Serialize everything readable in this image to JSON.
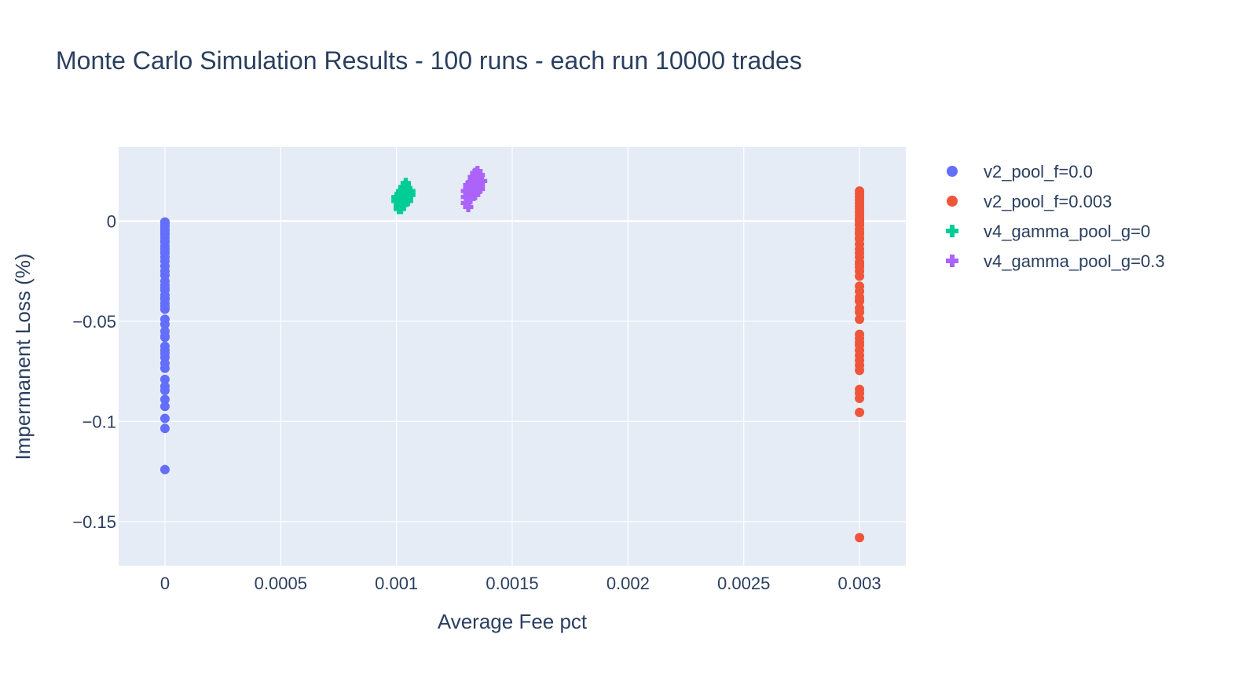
{
  "chart_data": {
    "type": "scatter",
    "title": "Monte Carlo Simulation Results - 100 runs - each run 10000 trades",
    "xlabel": "Average Fee pct",
    "ylabel": "Impermanent Loss (%)",
    "xlim": [
      -0.0002,
      0.0032
    ],
    "ylim": [
      -0.172,
      0.037
    ],
    "x_ticks": [
      0,
      0.0005,
      0.001,
      0.0015,
      0.002,
      0.0025,
      0.003
    ],
    "x_tick_labels": [
      "0",
      "0.0005",
      "0.001",
      "0.0015",
      "0.002",
      "0.0025",
      "0.003"
    ],
    "y_ticks": [
      0,
      -0.05,
      -0.1,
      -0.15
    ],
    "y_tick_labels": [
      "0",
      "−0.05",
      "−0.1",
      "−0.15"
    ],
    "grid": true,
    "legend_position": "right",
    "colors": {
      "plot_bg": "#e5ecf6",
      "grid": "#ffffff",
      "text": "#2a3f5f"
    },
    "series": [
      {
        "name": "v2_pool_f=0.0",
        "marker": "circle",
        "color": "#636efa",
        "x": [
          0,
          0,
          0,
          0,
          0,
          0,
          0,
          0,
          0,
          0,
          0,
          0,
          0,
          0,
          0,
          0,
          0,
          0,
          0,
          0,
          0,
          0,
          0,
          0,
          0,
          0,
          0,
          0,
          0,
          0,
          0,
          0,
          0,
          0,
          0,
          0,
          0,
          0,
          0,
          0,
          0,
          0,
          0,
          0,
          0,
          0,
          0,
          0,
          0,
          0
        ],
        "y": [
          -0.0005,
          -0.0015,
          -0.002,
          -0.003,
          -0.0045,
          -0.006,
          -0.007,
          -0.0085,
          -0.01,
          -0.0125,
          -0.014,
          -0.016,
          -0.018,
          -0.02,
          -0.025,
          -0.027,
          -0.03,
          -0.032,
          -0.0345,
          -0.037,
          -0.039,
          -0.041,
          -0.044,
          -0.049,
          -0.0515,
          -0.055,
          -0.058,
          -0.0645,
          -0.066,
          -0.068,
          -0.071,
          -0.0735,
          -0.079,
          -0.0825,
          -0.0845,
          -0.089,
          -0.0925,
          -0.0985,
          -0.1035,
          -0.124,
          -0.0105,
          -0.0225,
          -0.0335,
          -0.0425,
          -0.0575,
          -0.0625,
          -0.0005,
          -0.0045,
          -0.0155,
          -0.0385
        ]
      },
      {
        "name": "v2_pool_f=0.003",
        "marker": "circle",
        "color": "#ef553b",
        "x": [
          0.003,
          0.003,
          0.003,
          0.003,
          0.003,
          0.003,
          0.003,
          0.003,
          0.003,
          0.003,
          0.003,
          0.003,
          0.003,
          0.003,
          0.003,
          0.003,
          0.003,
          0.003,
          0.003,
          0.003,
          0.003,
          0.003,
          0.003,
          0.003,
          0.003,
          0.003,
          0.003,
          0.003,
          0.003,
          0.003,
          0.003,
          0.003,
          0.003,
          0.003,
          0.003,
          0.003,
          0.003,
          0.003,
          0.003,
          0.003,
          0.003,
          0.003,
          0.003,
          0.003,
          0.003,
          0.003,
          0.003,
          0.003,
          0.003,
          0.003
        ],
        "y": [
          0.015,
          0.0135,
          0.012,
          0.0105,
          0.009,
          0.0075,
          0.006,
          0.0045,
          0.003,
          0.0015,
          0,
          -0.002,
          -0.004,
          -0.0065,
          -0.009,
          -0.0115,
          -0.014,
          -0.016,
          -0.018,
          -0.0205,
          -0.023,
          -0.025,
          -0.0325,
          -0.035,
          -0.038,
          -0.04,
          -0.0435,
          -0.0455,
          -0.049,
          -0.0565,
          -0.0585,
          -0.062,
          -0.0645,
          -0.067,
          -0.0695,
          -0.072,
          -0.0745,
          -0.084,
          -0.086,
          -0.0885,
          -0.0955,
          -0.158,
          -0.0015,
          -0.0275,
          -0.0395,
          -0.0605,
          -0.0055,
          -0.0215,
          -0.0085,
          0.0005
        ]
      },
      {
        "name": "v4_gamma_pool_g=0",
        "marker": "cross",
        "color": "#00cc96",
        "x": [
          0.00101,
          0.00102,
          0.00103,
          0.00104,
          0.00105,
          0.00106,
          0.001,
          0.00101,
          0.00102,
          0.00103,
          0.00104,
          0.00105,
          0.00101,
          0.00102,
          0.00103,
          0.00104,
          0.00101,
          0.00102,
          0.00103,
          0.00105,
          0.00106,
          0.00104,
          0.00103,
          0.00102,
          0.001
        ],
        "y": [
          0.012,
          0.014,
          0.016,
          0.018,
          0.015,
          0.013,
          0.01,
          0.009,
          0.011,
          0.013,
          0.015,
          0.012,
          0.007,
          0.008,
          0.01,
          0.011,
          0.006,
          0.006,
          0.008,
          0.01,
          0.015,
          0.019,
          0.017,
          0.015,
          0.012
        ]
      },
      {
        "name": "v4_gamma_pool_g=0.3",
        "marker": "cross",
        "color": "#ab63fa",
        "x": [
          0.00131,
          0.00132,
          0.00133,
          0.00134,
          0.00135,
          0.00136,
          0.00137,
          0.0013,
          0.00131,
          0.00132,
          0.00133,
          0.00134,
          0.00135,
          0.00136,
          0.0013,
          0.00131,
          0.00132,
          0.00133,
          0.00134,
          0.0013,
          0.00131,
          0.00132,
          0.00134,
          0.00135,
          0.00136,
          0.00133,
          0.00134,
          0.00135
        ],
        "y": [
          0.018,
          0.019,
          0.02,
          0.021,
          0.022,
          0.023,
          0.02,
          0.015,
          0.016,
          0.017,
          0.018,
          0.019,
          0.02,
          0.018,
          0.012,
          0.013,
          0.014,
          0.015,
          0.016,
          0.009,
          0.007,
          0.011,
          0.013,
          0.015,
          0.016,
          0.022,
          0.024,
          0.025
        ]
      }
    ]
  }
}
